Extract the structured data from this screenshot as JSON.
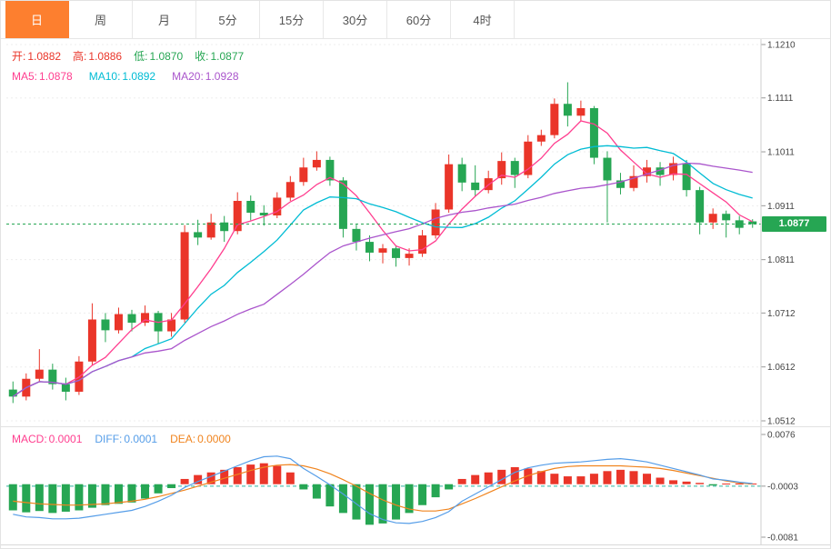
{
  "tabs": {
    "items": [
      {
        "label": "日",
        "active": true
      },
      {
        "label": "周",
        "active": false
      },
      {
        "label": "月",
        "active": false
      },
      {
        "label": "5分",
        "active": false
      },
      {
        "label": "15分",
        "active": false
      },
      {
        "label": "30分",
        "active": false
      },
      {
        "label": "60分",
        "active": false
      },
      {
        "label": "4时",
        "active": false
      }
    ]
  },
  "legend": {
    "ohlc": [
      {
        "label": "开:",
        "value": "1.0882",
        "color": "#ea3529"
      },
      {
        "label": "高:",
        "value": "1.0886",
        "color": "#ea3529"
      },
      {
        "label": "低:",
        "value": "1.0870",
        "color": "#26a653"
      },
      {
        "label": "收:",
        "value": "1.0877",
        "color": "#26a653"
      }
    ],
    "ma": [
      {
        "label": "MA5:",
        "value": "1.0878",
        "color": "#ff3e8f"
      },
      {
        "label": "MA10:",
        "value": "1.0892",
        "color": "#00bcd4"
      },
      {
        "label": "MA20:",
        "value": "1.0928",
        "color": "#aa55cc"
      }
    ],
    "macd": [
      {
        "label": "MACD:",
        "value": "0.0001",
        "color": "#ff3e8f"
      },
      {
        "label": "DIFF:",
        "value": "0.0001",
        "color": "#559de8"
      },
      {
        "label": "DEA:",
        "value": "0.0000",
        "color": "#f0841e"
      }
    ]
  },
  "last_price": {
    "value": "1.0877",
    "level": 1.0877
  },
  "chart_data": {
    "type": "candlestick",
    "title": "",
    "legend_position": "top-left",
    "colors": {
      "up": "#ea3529",
      "down": "#26a653",
      "ma5": "#ff3e8f",
      "ma10": "#00bcd4",
      "ma20": "#aa55cc",
      "diff_line": "#559de8",
      "dea_line": "#f0841e",
      "baseline": "#2fb3a0",
      "grid": "#ededed",
      "axis": "#cfcfcf",
      "tab_accent": "#fd7f2f"
    },
    "panels": [
      {
        "name": "price",
        "ylim": [
          1.0512,
          1.121
        ],
        "yticks": [
          "1.1210",
          "1.1111",
          "1.1011",
          "1.0911",
          "1.0811",
          "1.0712",
          "1.0612",
          "1.0512"
        ],
        "last_price": 1.0877,
        "overlays": [
          {
            "name": "MA5",
            "period": 5,
            "color": "#ff3e8f"
          },
          {
            "name": "MA10",
            "period": 10,
            "color": "#00bcd4"
          },
          {
            "name": "MA20",
            "period": 20,
            "color": "#aa55cc"
          }
        ],
        "candles": [
          [
            1.057,
            1.0585,
            1.0545,
            1.0557
          ],
          [
            1.0557,
            1.06,
            1.055,
            1.059
          ],
          [
            1.059,
            1.0645,
            1.0585,
            1.0607
          ],
          [
            1.0607,
            1.0618,
            1.057,
            1.058
          ],
          [
            1.058,
            1.0592,
            1.055,
            1.0566
          ],
          [
            1.0566,
            1.0632,
            1.056,
            1.0622
          ],
          [
            1.0622,
            1.073,
            1.0615,
            1.07
          ],
          [
            1.07,
            1.0712,
            1.0658,
            1.068
          ],
          [
            1.068,
            1.0722,
            1.0674,
            1.071
          ],
          [
            1.071,
            1.0718,
            1.0678,
            1.0694
          ],
          [
            1.0694,
            1.0726,
            1.0688,
            1.0712
          ],
          [
            1.0712,
            1.0716,
            1.0655,
            1.0678
          ],
          [
            1.0678,
            1.0712,
            1.0668,
            1.07
          ],
          [
            1.07,
            1.0875,
            1.0694,
            1.0862
          ],
          [
            1.0862,
            1.0885,
            1.0838,
            1.0852
          ],
          [
            1.0852,
            1.0896,
            1.0848,
            1.088
          ],
          [
            1.088,
            1.0892,
            1.0844,
            1.0864
          ],
          [
            1.0864,
            1.0936,
            1.0858,
            1.092
          ],
          [
            1.092,
            1.093,
            1.0884,
            1.0898
          ],
          [
            1.0898,
            1.0912,
            1.0874,
            1.0893
          ],
          [
            1.0893,
            1.0936,
            1.0888,
            1.0926
          ],
          [
            1.0926,
            1.0966,
            1.092,
            1.0955
          ],
          [
            1.0955,
            1.1,
            1.0948,
            1.0982
          ],
          [
            1.0982,
            1.1012,
            1.0976,
            1.0996
          ],
          [
            1.0996,
            1.1002,
            1.0948,
            1.0958
          ],
          [
            1.0958,
            1.0964,
            1.0852,
            1.0868
          ],
          [
            1.0868,
            1.0876,
            1.0828,
            1.0844
          ],
          [
            1.0844,
            1.0856,
            1.0808,
            1.0824
          ],
          [
            1.0824,
            1.084,
            1.0804,
            1.0832
          ],
          [
            1.0832,
            1.0836,
            1.0798,
            1.0814
          ],
          [
            1.0814,
            1.0832,
            1.08,
            1.0822
          ],
          [
            1.0822,
            1.0866,
            1.0816,
            1.0856
          ],
          [
            1.0856,
            1.0916,
            1.085,
            1.0904
          ],
          [
            1.0904,
            1.1006,
            1.0898,
            1.0988
          ],
          [
            1.0988,
            1.1,
            1.0938,
            1.0954
          ],
          [
            1.0954,
            1.0986,
            1.0928,
            1.094
          ],
          [
            1.094,
            1.0976,
            1.0934,
            1.0962
          ],
          [
            1.0962,
            1.101,
            1.095,
            1.0994
          ],
          [
            1.0994,
            1.1,
            1.0944,
            1.0968
          ],
          [
            1.0968,
            1.1042,
            1.0962,
            1.103
          ],
          [
            1.103,
            1.1052,
            1.1022,
            1.1042
          ],
          [
            1.1042,
            1.111,
            1.1036,
            1.11
          ],
          [
            1.11,
            1.114,
            1.1058,
            1.1078
          ],
          [
            1.1078,
            1.1106,
            1.1068,
            1.1092
          ],
          [
            1.1092,
            1.1096,
            1.0988,
            1.1
          ],
          [
            1.1,
            1.1012,
            1.088,
            1.0958
          ],
          [
            1.0958,
            1.0972,
            1.0932,
            1.0944
          ],
          [
            1.0944,
            1.0986,
            1.0938,
            1.0966
          ],
          [
            1.0966,
            1.0996,
            1.0954,
            1.0982
          ],
          [
            1.0982,
            1.0992,
            1.0948,
            1.0968
          ],
          [
            1.0968,
            1.1002,
            1.0958,
            1.099
          ],
          [
            1.099,
            1.0996,
            1.0928,
            1.094
          ],
          [
            1.094,
            1.0946,
            1.0858,
            1.088
          ],
          [
            1.088,
            1.0906,
            1.0868,
            1.0896
          ],
          [
            1.0896,
            1.0902,
            1.0852,
            1.0884
          ],
          [
            1.0884,
            1.0892,
            1.0858,
            1.087
          ],
          [
            1.0882,
            1.0886,
            1.087,
            1.0877
          ]
        ]
      },
      {
        "name": "macd",
        "ylim": [
          -0.0081,
          0.0076
        ],
        "yticks": [
          "0.0076",
          "-0.0003",
          "-0.0081"
        ],
        "baseline": -0.0003,
        "hist": [
          -0.004,
          -0.0043,
          -0.0041,
          -0.0044,
          -0.0042,
          -0.004,
          -0.0036,
          -0.0032,
          -0.003,
          -0.0028,
          -0.0022,
          -0.0014,
          -0.0006,
          0.0008,
          0.0014,
          0.0018,
          0.0022,
          0.0026,
          0.003,
          0.0032,
          0.0028,
          0.0018,
          -0.0008,
          -0.0022,
          -0.0034,
          -0.0044,
          -0.0054,
          -0.0062,
          -0.006,
          -0.0054,
          -0.0044,
          -0.0032,
          -0.002,
          -0.0008,
          0.0008,
          0.0014,
          0.0018,
          0.0022,
          0.0026,
          0.0024,
          0.002,
          0.0016,
          0.0012,
          0.0012,
          0.0016,
          0.002,
          0.0022,
          0.002,
          0.0016,
          0.001,
          0.0006,
          0.0004,
          0.0002,
          -0.0002,
          0.0001,
          0.0001,
          0.0001
        ],
        "diff": [
          -0.0046,
          -0.005,
          -0.0051,
          -0.0053,
          -0.0053,
          -0.0052,
          -0.0049,
          -0.0046,
          -0.0043,
          -0.004,
          -0.0034,
          -0.0026,
          -0.0017,
          -0.0005,
          0.0004,
          0.0012,
          0.002,
          0.0028,
          0.0036,
          0.0042,
          0.0043,
          0.0039,
          0.0024,
          0.0012,
          -0.0001,
          -0.0015,
          -0.003,
          -0.0045,
          -0.0054,
          -0.0059,
          -0.006,
          -0.0057,
          -0.0051,
          -0.0042,
          -0.0026,
          -0.0015,
          -0.0004,
          0.0007,
          0.0018,
          0.0025,
          0.0029,
          0.0032,
          0.0033,
          0.0034,
          0.0036,
          0.0038,
          0.0039,
          0.0037,
          0.0034,
          0.0029,
          0.0024,
          0.0019,
          0.0014,
          0.0008,
          0.0006,
          0.0003,
          0.0001
        ],
        "dea": [
          -0.0026,
          -0.0028,
          -0.003,
          -0.0031,
          -0.0032,
          -0.0032,
          -0.0031,
          -0.003,
          -0.0028,
          -0.0026,
          -0.0023,
          -0.0019,
          -0.0014,
          -0.0009,
          -0.0003,
          0.0003,
          0.0009,
          0.0015,
          0.0021,
          0.0026,
          0.0029,
          0.003,
          0.0028,
          0.0023,
          0.0016,
          0.0007,
          -0.0003,
          -0.0014,
          -0.0024,
          -0.0032,
          -0.0038,
          -0.0041,
          -0.0041,
          -0.0038,
          -0.003,
          -0.0022,
          -0.0013,
          -0.0004,
          0.0005,
          0.0013,
          0.0019,
          0.0024,
          0.0027,
          0.0028,
          0.0028,
          0.0028,
          0.0028,
          0.0027,
          0.0026,
          0.0024,
          0.0021,
          0.0017,
          0.0013,
          0.0009,
          0.0005,
          0.0002,
          0.0
        ]
      }
    ]
  }
}
